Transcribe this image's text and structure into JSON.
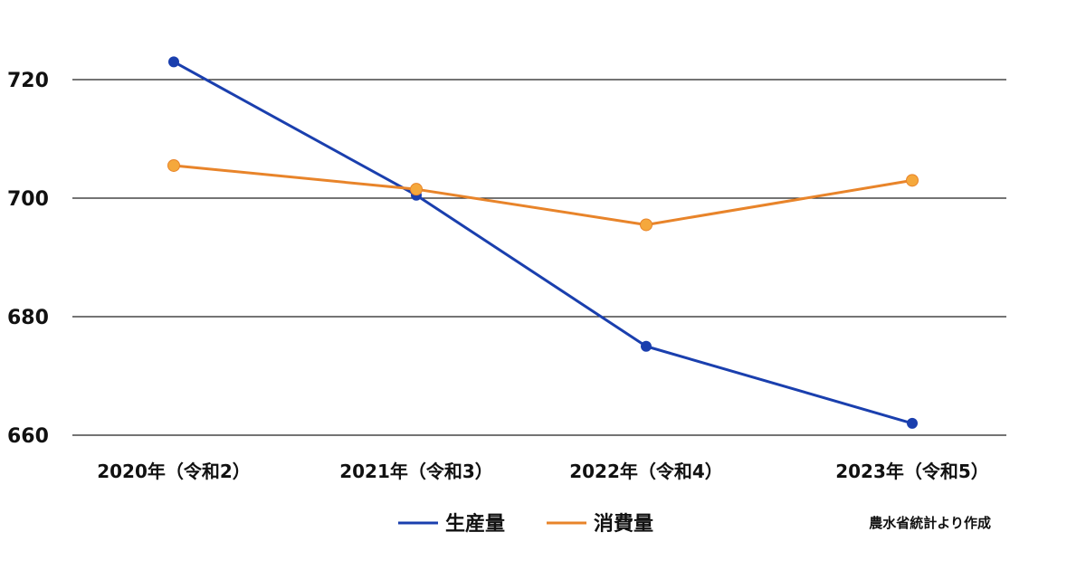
{
  "chart_data": {
    "type": "line",
    "categories": [
      "2020年（令和2）",
      "2021年（令和3）",
      "2022年（令和4）",
      "2023年（令和5）"
    ],
    "series": [
      {
        "name": "生産量",
        "values": [
          723,
          700.5,
          675,
          662
        ],
        "color": "#1a3fae"
      },
      {
        "name": "消費量",
        "values": [
          705.5,
          701.5,
          695.5,
          703
        ],
        "color": "#e8842a"
      }
    ],
    "y_ticks": [
      "660",
      "680",
      "700",
      "720"
    ],
    "ylim": [
      660,
      720
    ],
    "grid": true,
    "legend_position": "bottom",
    "source": "農水省統計より作成"
  }
}
